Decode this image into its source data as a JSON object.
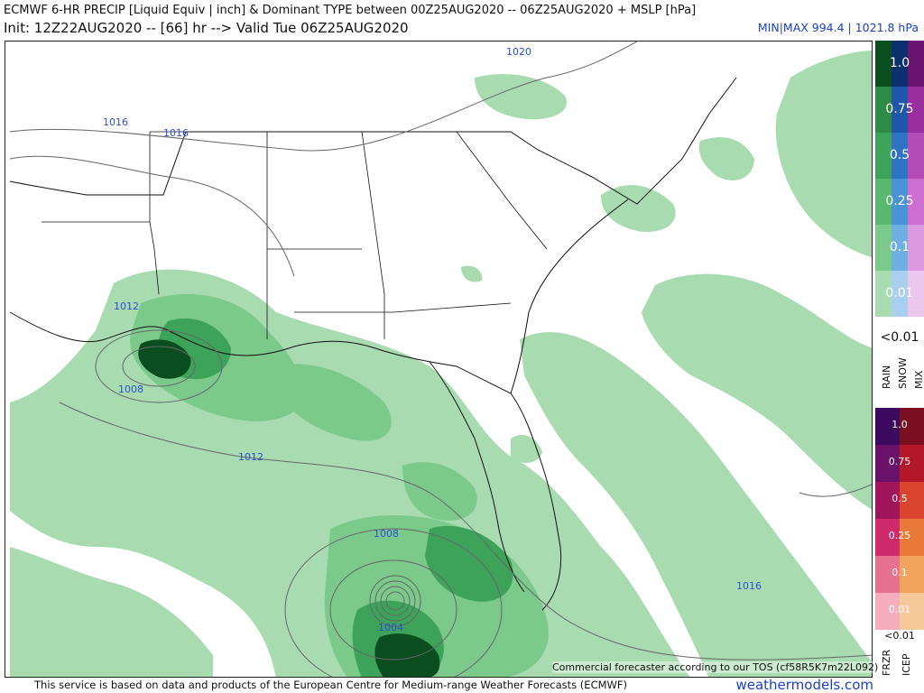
{
  "header": {
    "title": "ECMWF 6-HR PRECIP [Liquid Equiv | inch] & Dominant TYPE between 00Z25AUG2020 -- 06Z25AUG2020 + MSLP [hPa]",
    "init": "Init: 12Z22AUG2020 -- [66] hr --> Valid Tue 06Z25AUG2020",
    "minmax": "MIN|MAX 994.4 | 1021.8 hPa"
  },
  "isobar_labels": [
    "1020",
    "1016",
    "1016",
    "1012",
    "1008",
    "1012",
    "1008",
    "1004",
    "1016"
  ],
  "legend": {
    "top_levels": [
      "1.0",
      "0.75",
      "0.5",
      "0.25",
      "0.1",
      "0.01"
    ],
    "top_below": "<0.01",
    "top_types": [
      "RAIN",
      "SNOW",
      "MIX"
    ],
    "bottom_levels": [
      "1.0",
      "0.75",
      "0.5",
      "0.25",
      "0.1",
      "0.01"
    ],
    "bottom_below": "<0.01",
    "bottom_types": [
      "FRZR",
      "ICEP"
    ],
    "colors": {
      "rain": [
        "#0a4d1f",
        "#2e8b46",
        "#3da35a",
        "#59b86f",
        "#7cc98c",
        "#a8dcb0"
      ],
      "snow": [
        "#0c2f6e",
        "#1f56a8",
        "#2f74c2",
        "#4a93d6",
        "#70afe2",
        "#a9cfee"
      ],
      "mix": [
        "#6a1570",
        "#9a2e9f",
        "#b64cb8",
        "#cc6fd0",
        "#dc98e0",
        "#ecc6ef"
      ],
      "frzr": [
        "#3b0a5e",
        "#6a1269",
        "#a0155c",
        "#cf2a6b",
        "#e6708f",
        "#f4aebd"
      ],
      "icep": [
        "#7a0f1f",
        "#b3182a",
        "#d9442f",
        "#e97a3a",
        "#f2a45f",
        "#f7c99a"
      ]
    }
  },
  "footer": {
    "source": "This service is based on data and products of the European Centre for Medium-range Weather Forecasts (ECMWF)",
    "brand": "weathermodels.com",
    "tos": "Commercial forecaster according to our TOS (cf58R5K7m22L092)"
  }
}
